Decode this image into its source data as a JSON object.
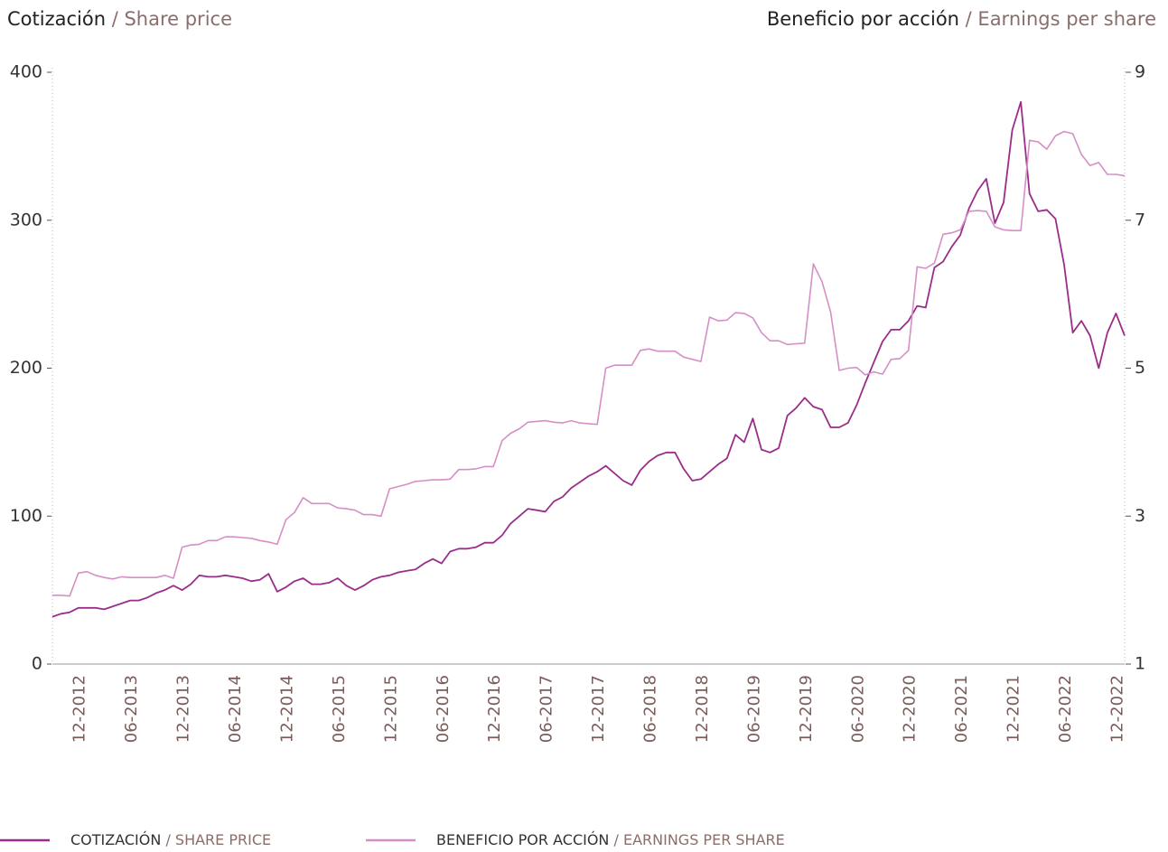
{
  "chart_data": {
    "type": "line",
    "y_title": [
      "Cotización",
      "/ Share price"
    ],
    "y2_title": [
      "Beneficio por acción",
      "/ Earnings per share"
    ],
    "categories": [
      null,
      null,
      null,
      "12-2012",
      null,
      null,
      null,
      null,
      null,
      "06-2013",
      null,
      null,
      null,
      null,
      null,
      "12-2013",
      null,
      null,
      null,
      null,
      null,
      "06-2014",
      null,
      null,
      null,
      null,
      null,
      "12-2014",
      null,
      null,
      null,
      null,
      null,
      "06-2015",
      null,
      null,
      null,
      null,
      null,
      "12-2015",
      null,
      null,
      null,
      null,
      null,
      "06-2016",
      null,
      null,
      null,
      null,
      null,
      "12-2016",
      null,
      null,
      null,
      null,
      null,
      "06-2017",
      null,
      null,
      null,
      null,
      null,
      "12-2017",
      null,
      null,
      null,
      null,
      null,
      "06-2018",
      null,
      null,
      null,
      null,
      null,
      "12-2018",
      null,
      null,
      null,
      null,
      null,
      "06-2019",
      null,
      null,
      null,
      null,
      null,
      "12-2019",
      null,
      null,
      null,
      null,
      null,
      "06-2020",
      null,
      null,
      null,
      null,
      null,
      "12-2020",
      null,
      null,
      null,
      null,
      null,
      "06-2021",
      null,
      null,
      null,
      null,
      null,
      "12-2021",
      null,
      null,
      null,
      null,
      null,
      "06-2022",
      null,
      null,
      null,
      null,
      null,
      "12-2022",
      null
    ],
    "series": [
      {
        "name": "COTIZACIÓN",
        "name_en": "/ SHARE PRICE",
        "color": "#9b2d8a",
        "axis": "y",
        "values": [
          32,
          34,
          35,
          38,
          38,
          38,
          37,
          39,
          41,
          43,
          43,
          45,
          48,
          50,
          53,
          50,
          54,
          60,
          59,
          59,
          60,
          59,
          58,
          56,
          57,
          61,
          49,
          52,
          56,
          58,
          54,
          54,
          55,
          58,
          53,
          50,
          53,
          57,
          59,
          60,
          62,
          63,
          64,
          68,
          71,
          68,
          76,
          78,
          78,
          79,
          82,
          82,
          87,
          95,
          100,
          105,
          104,
          103,
          110,
          113,
          119,
          123,
          127,
          130,
          134,
          129,
          124,
          121,
          131,
          137,
          141,
          143,
          143,
          132,
          124,
          125,
          130,
          135,
          139,
          155,
          150,
          166,
          145,
          143,
          146,
          168,
          173,
          180,
          174,
          172,
          160,
          160,
          163,
          175,
          190,
          204,
          218,
          226,
          226,
          232,
          242,
          241,
          268,
          272,
          282,
          290,
          308,
          320,
          328,
          298,
          312,
          361,
          380,
          318,
          306,
          307,
          301,
          270,
          224,
          232,
          222,
          200,
          224,
          237,
          222
        ]
      },
      {
        "name": "BENEFICIO POR ACCIÓN",
        "name_en": "/ EARNINGS PER SHARE",
        "color": "#d68fc5",
        "axis": "y2",
        "values": [
          1.93,
          1.93,
          1.92,
          2.23,
          2.25,
          2.2,
          2.17,
          2.15,
          2.18,
          2.17,
          2.17,
          2.17,
          2.17,
          2.2,
          2.16,
          2.58,
          2.61,
          2.62,
          2.67,
          2.67,
          2.72,
          2.72,
          2.71,
          2.7,
          2.67,
          2.65,
          2.62,
          2.95,
          3.05,
          3.25,
          3.17,
          3.17,
          3.17,
          3.11,
          3.1,
          3.08,
          3.02,
          3.02,
          3.0,
          3.37,
          3.4,
          3.43,
          3.47,
          3.48,
          3.49,
          3.49,
          3.5,
          3.63,
          3.63,
          3.64,
          3.67,
          3.67,
          4.02,
          4.12,
          4.18,
          4.27,
          4.28,
          4.29,
          4.27,
          4.26,
          4.29,
          4.26,
          4.25,
          4.24,
          5.0,
          5.04,
          5.04,
          5.04,
          5.24,
          5.26,
          5.23,
          5.23,
          5.23,
          5.15,
          5.12,
          5.09,
          5.69,
          5.64,
          5.65,
          5.75,
          5.74,
          5.68,
          5.48,
          5.37,
          5.37,
          5.32,
          5.33,
          5.34,
          6.41,
          6.17,
          5.76,
          4.97,
          5.0,
          5.01,
          4.91,
          4.95,
          4.92,
          5.12,
          5.13,
          5.24,
          6.37,
          6.35,
          6.42,
          6.81,
          6.83,
          6.87,
          7.12,
          7.13,
          7.12,
          6.91,
          6.87,
          6.86,
          6.86,
          8.08,
          8.06,
          7.96,
          8.14,
          8.2,
          8.17,
          7.89,
          7.74,
          7.78,
          7.62,
          7.62,
          7.6
        ]
      }
    ],
    "ylim": [
      0,
      400
    ],
    "yticks": [
      0,
      100,
      200,
      300,
      400
    ],
    "y2lim": [
      1,
      9
    ],
    "y2ticks": [
      1,
      3,
      5,
      7,
      9
    ]
  }
}
